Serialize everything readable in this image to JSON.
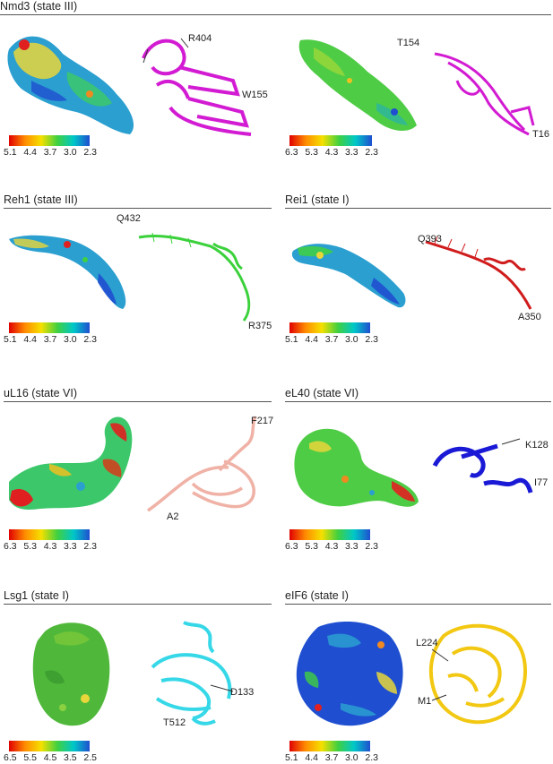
{
  "panels": {
    "nmd3": {
      "title": "Nmd3 (state III)",
      "labels": [
        "R404",
        "W155"
      ],
      "colorbar": {
        "ticks": [
          "5.1",
          "4.4",
          "3.7",
          "3.0",
          "2.3"
        ]
      },
      "ribbon_color": "#d21bd2"
    },
    "nmd3b": {
      "labels": [
        "T154",
        "T16"
      ],
      "colorbar": {
        "ticks": [
          "6.3",
          "5.3",
          "4.3",
          "3.3",
          "2.3"
        ]
      },
      "ribbon_color": "#d21bd2"
    },
    "reh1": {
      "title": "Reh1 (state III)",
      "labels": [
        "Q432",
        "R375"
      ],
      "colorbar": {
        "ticks": [
          "5.1",
          "4.4",
          "3.7",
          "3.0",
          "2.3"
        ]
      },
      "ribbon_color": "#3bd13b"
    },
    "rei1": {
      "title": "Rei1 (state I)",
      "labels": [
        "Q393",
        "A350"
      ],
      "colorbar": {
        "ticks": [
          "5.1",
          "4.4",
          "3.7",
          "3.0",
          "2.3"
        ]
      },
      "ribbon_color": "#d01c1c"
    },
    "ul16": {
      "title": "uL16 (state VI)",
      "labels": [
        "F217",
        "A2"
      ],
      "colorbar": {
        "ticks": [
          "6.3",
          "5.3",
          "4.3",
          "3.3",
          "2.3"
        ]
      },
      "ribbon_color": "#f0b2a6"
    },
    "el40": {
      "title": "eL40 (state VI)",
      "labels": [
        "K128",
        "I77"
      ],
      "colorbar": {
        "ticks": [
          "6.3",
          "5.3",
          "4.3",
          "3.3",
          "2.3"
        ]
      },
      "ribbon_color": "#1a1ad6"
    },
    "lsg1": {
      "title": "Lsg1 (state I)",
      "labels": [
        "D133",
        "T512"
      ],
      "colorbar": {
        "ticks": [
          "6.5",
          "5.5",
          "4.5",
          "3.5",
          "2.5"
        ]
      },
      "ribbon_color": "#36d8e8"
    },
    "eif6": {
      "title": "eIF6 (state I)",
      "labels": [
        "L224",
        "M1"
      ],
      "colorbar": {
        "ticks": [
          "5.1",
          "4.4",
          "3.7",
          "3.0",
          "2.3"
        ]
      },
      "ribbon_color": "#f2c812"
    }
  },
  "colors": {
    "colorbar_gradient": [
      "#e00000",
      "#ff8c00",
      "#f5e000",
      "#40d040",
      "#00c8c8",
      "#1f4fd0"
    ]
  }
}
